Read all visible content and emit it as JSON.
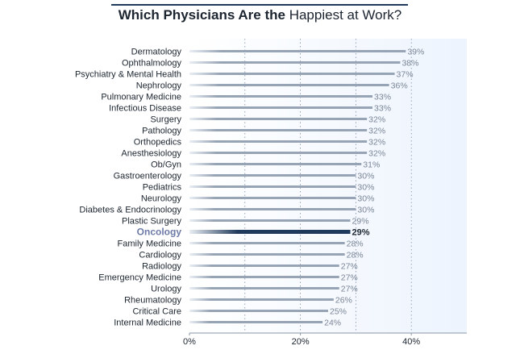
{
  "chart_data": {
    "type": "bar",
    "orientation": "horizontal",
    "title_bold": "Which Physicians Are the",
    "title_rest": "Happiest at Work?",
    "categories": [
      "Dermatology",
      "Ophthalmology",
      "Psychiatry & Mental Health",
      "Nephrology",
      "Pulmonary Medicine",
      "Infectious Disease",
      "Surgery",
      "Pathology",
      "Orthopedics",
      "Anesthesiology",
      "Ob/Gyn",
      "Gastroenterology",
      "Pediatrics",
      "Neurology",
      "Diabetes & Endocrinology",
      "Plastic Surgery",
      "Oncology",
      "Family Medicine",
      "Cardiology",
      "Radiology",
      "Emergency Medicine",
      "Urology",
      "Rheumatology",
      "Critical Care",
      "Internal Medicine"
    ],
    "values": [
      39,
      38,
      37,
      36,
      33,
      33,
      32,
      32,
      32,
      32,
      31,
      30,
      30,
      30,
      30,
      29,
      29,
      28,
      28,
      27,
      27,
      27,
      26,
      25,
      24
    ],
    "value_labels": [
      "39%",
      "38%",
      "37%",
      "36%",
      "33%",
      "33%",
      "32%",
      "32%",
      "32%",
      "32%",
      "31%",
      "30%",
      "30%",
      "30%",
      "30%",
      "29%",
      "29%",
      "28%",
      "28%",
      "27%",
      "27%",
      "27%",
      "26%",
      "25%",
      "24%"
    ],
    "highlight": "Oncology",
    "xlim": [
      0,
      50
    ],
    "xticks": [
      0,
      20,
      40
    ],
    "xtick_labels": [
      "0%",
      "20%",
      "40%"
    ],
    "grid": "vertical dotted lines",
    "legend": "none",
    "colors": {
      "bar": "#97a4b6",
      "highlight": "#1f3a5a",
      "plot_background": "#edf4fe",
      "title_rule": "#1f3a5a"
    }
  }
}
